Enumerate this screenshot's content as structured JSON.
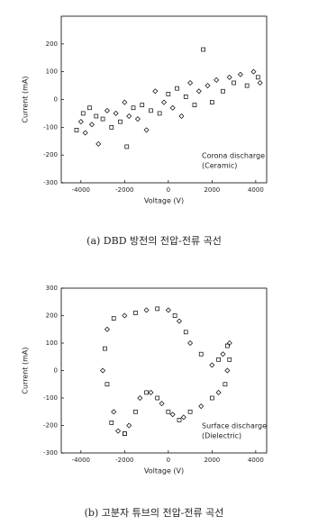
{
  "chart_data": [
    {
      "type": "scatter",
      "x_label": "Voltage (V)",
      "y_label": "Current (mA)",
      "caption": "(a) DBD 방전의 전압-전류 곡선",
      "annotations": [
        "Corona discharge",
        "(Ceramic)"
      ],
      "color": "#000000",
      "xlim": [
        -4900,
        4500
      ],
      "ylim": [
        -300,
        300
      ],
      "xticks": [
        -4000,
        -2000,
        0,
        2000,
        4000
      ],
      "yticks": [
        -300,
        -200,
        -100,
        0,
        100,
        200
      ],
      "x": [
        -4200,
        -4000,
        -3900,
        -3800,
        -3600,
        -3500,
        -3300,
        -3200,
        -3000,
        -2800,
        -2600,
        -2400,
        -2200,
        -2000,
        -1900,
        -1800,
        -1600,
        -1400,
        -1200,
        -1000,
        -800,
        -600,
        -400,
        -200,
        0,
        200,
        400,
        600,
        800,
        1000,
        1200,
        1400,
        1600,
        1800,
        2000,
        2200,
        2500,
        2800,
        3000,
        3300,
        3600,
        3900,
        4100,
        4200
      ],
      "values": [
        -110,
        -80,
        -50,
        -120,
        -30,
        -90,
        -60,
        -160,
        -70,
        -40,
        -100,
        -50,
        -80,
        -10,
        -170,
        -60,
        -30,
        -70,
        -20,
        -110,
        -40,
        30,
        -50,
        -10,
        20,
        -30,
        40,
        -60,
        10,
        60,
        -20,
        30,
        180,
        50,
        -10,
        70,
        30,
        80,
        60,
        90,
        50,
        100,
        80,
        60
      ]
    },
    {
      "type": "scatter",
      "x_label": "Voltage (V)",
      "y_label": "Current (mA)",
      "caption": "(b) 고분자 튜브의 전압-전류 곡선",
      "annotations": [
        "Surface discharge",
        "(Dielectric)"
      ],
      "color": "#000000",
      "xlim": [
        -4900,
        4500
      ],
      "ylim": [
        -300,
        300
      ],
      "xticks": [
        -4000,
        -2000,
        0,
        2000,
        4000
      ],
      "yticks": [
        -300,
        -200,
        -100,
        0,
        100,
        200,
        300
      ],
      "x": [
        -2000,
        -2500,
        -2800,
        -3000,
        -2900,
        -2800,
        -2500,
        -2000,
        -1500,
        -1000,
        -500,
        0,
        300,
        500,
        800,
        1000,
        1500,
        2000,
        2300,
        2500,
        2700,
        2800,
        2800,
        2700,
        2600,
        2300,
        2000,
        1500,
        1000,
        700,
        500,
        200,
        0,
        -300,
        -500,
        -800,
        -1000,
        -1300,
        -1500,
        -1800,
        -2000,
        -2300,
        -2600
      ],
      "values": [
        -230,
        -150,
        -50,
        0,
        80,
        150,
        190,
        200,
        210,
        220,
        225,
        220,
        200,
        180,
        140,
        100,
        60,
        20,
        40,
        60,
        90,
        100,
        40,
        0,
        -50,
        -80,
        -100,
        -130,
        -150,
        -170,
        -180,
        -160,
        -150,
        -120,
        -100,
        -80,
        -80,
        -100,
        -150,
        -200,
        -230,
        -220,
        -190
      ]
    }
  ]
}
